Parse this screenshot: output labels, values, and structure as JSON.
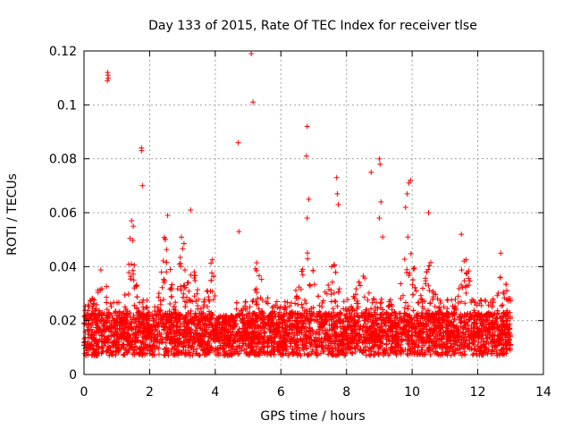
{
  "chart_data": {
    "type": "scatter",
    "title": "Day 133 of 2015, Rate Of TEC Index for receiver tlse",
    "xlabel": "GPS time / hours",
    "ylabel": "ROTI / TECUs",
    "xlim": [
      0,
      14
    ],
    "ylim": [
      0,
      0.12
    ],
    "x_ticks": [
      0,
      2,
      4,
      6,
      8,
      10,
      12,
      14
    ],
    "y_ticks": [
      0,
      0.02,
      0.04,
      0.06,
      0.08,
      0.1,
      0.12
    ],
    "x_tick_labels": [
      "0",
      "2",
      "4",
      "6",
      "8",
      "10",
      "12",
      "14"
    ],
    "y_tick_labels": [
      "0",
      "0.02",
      "0.04",
      "0.06",
      "0.08",
      "0.1",
      "0.12"
    ],
    "grid": true,
    "marker": "+",
    "color": "#ff0000",
    "series": [
      {
        "name": "ROTI",
        "x_range_hours": [
          0,
          13.0
        ],
        "typical_band": [
          0.008,
          0.03
        ],
        "notable_points": [
          {
            "x": 0.72,
            "y": 0.112
          },
          {
            "x": 0.73,
            "y": 0.111
          },
          {
            "x": 0.74,
            "y": 0.11
          },
          {
            "x": 0.71,
            "y": 0.109
          },
          {
            "x": 1.75,
            "y": 0.084
          },
          {
            "x": 1.76,
            "y": 0.083
          },
          {
            "x": 1.78,
            "y": 0.07
          },
          {
            "x": 1.45,
            "y": 0.057
          },
          {
            "x": 1.5,
            "y": 0.055
          },
          {
            "x": 2.55,
            "y": 0.059
          },
          {
            "x": 3.25,
            "y": 0.061
          },
          {
            "x": 4.7,
            "y": 0.086
          },
          {
            "x": 4.72,
            "y": 0.053
          },
          {
            "x": 5.1,
            "y": 0.119
          },
          {
            "x": 5.15,
            "y": 0.101
          },
          {
            "x": 6.8,
            "y": 0.092
          },
          {
            "x": 6.78,
            "y": 0.081
          },
          {
            "x": 6.85,
            "y": 0.065
          },
          {
            "x": 6.8,
            "y": 0.058
          },
          {
            "x": 7.7,
            "y": 0.073
          },
          {
            "x": 7.72,
            "y": 0.067
          },
          {
            "x": 7.75,
            "y": 0.063
          },
          {
            "x": 8.75,
            "y": 0.075
          },
          {
            "x": 9.0,
            "y": 0.08
          },
          {
            "x": 9.02,
            "y": 0.078
          },
          {
            "x": 9.05,
            "y": 0.064
          },
          {
            "x": 9.0,
            "y": 0.058
          },
          {
            "x": 9.1,
            "y": 0.051
          },
          {
            "x": 9.9,
            "y": 0.071
          },
          {
            "x": 9.95,
            "y": 0.072
          },
          {
            "x": 9.85,
            "y": 0.067
          },
          {
            "x": 9.8,
            "y": 0.062
          },
          {
            "x": 10.5,
            "y": 0.06
          },
          {
            "x": 11.5,
            "y": 0.052
          },
          {
            "x": 12.7,
            "y": 0.045
          }
        ]
      }
    ]
  }
}
